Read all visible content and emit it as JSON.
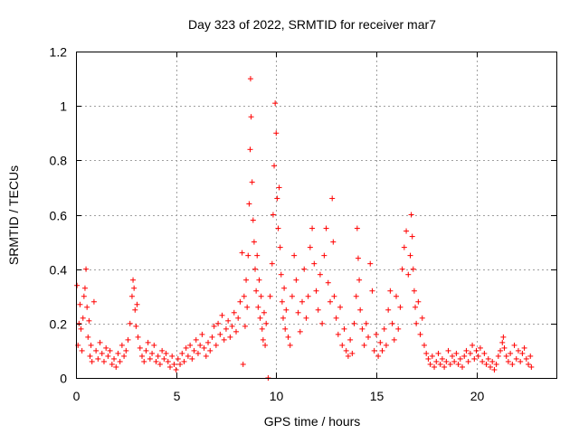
{
  "chart_data": {
    "type": "scatter",
    "title": "Day 323 of 2022, SRMTID for receiver mar7",
    "xlabel": "GPS time / hours",
    "ylabel": "SRMTID / TECUs",
    "xlim": [
      0,
      24
    ],
    "ylim": [
      0,
      1.2
    ],
    "x_ticks": [
      0,
      5,
      10,
      15,
      20
    ],
    "y_ticks": [
      0,
      0.2,
      0.4,
      0.6,
      0.8,
      1,
      1.2
    ],
    "x_tick_labels": [
      "0",
      "5",
      "10",
      "15",
      "20"
    ],
    "y_tick_labels": [
      "0",
      "0.2",
      "0.4",
      "0.6",
      "0.8",
      "1",
      "1.2"
    ],
    "marker": "+",
    "marker_color": "#ff0000",
    "grid": true,
    "series": [
      {
        "name": "SRMTID",
        "points": [
          [
            0.05,
            0.34
          ],
          [
            0.1,
            0.12
          ],
          [
            0.15,
            0.2
          ],
          [
            0.2,
            0.27
          ],
          [
            0.25,
            0.18
          ],
          [
            0.3,
            0.1
          ],
          [
            0.35,
            0.22
          ],
          [
            0.4,
            0.3
          ],
          [
            0.45,
            0.33
          ],
          [
            0.5,
            0.4
          ],
          [
            0.55,
            0.26
          ],
          [
            0.6,
            0.15
          ],
          [
            0.65,
            0.21
          ],
          [
            0.7,
            0.08
          ],
          [
            0.75,
            0.12
          ],
          [
            0.8,
            0.06
          ],
          [
            0.9,
            0.28
          ],
          [
            1.0,
            0.1
          ],
          [
            1.1,
            0.07
          ],
          [
            1.2,
            0.13
          ],
          [
            1.3,
            0.09
          ],
          [
            1.4,
            0.06
          ],
          [
            1.5,
            0.11
          ],
          [
            1.6,
            0.08
          ],
          [
            1.7,
            0.1
          ],
          [
            1.8,
            0.05
          ],
          [
            1.9,
            0.07
          ],
          [
            2.0,
            0.04
          ],
          [
            2.1,
            0.09
          ],
          [
            2.2,
            0.06
          ],
          [
            2.3,
            0.12
          ],
          [
            2.4,
            0.08
          ],
          [
            2.5,
            0.1
          ],
          [
            2.6,
            0.14
          ],
          [
            2.7,
            0.2
          ],
          [
            2.8,
            0.3
          ],
          [
            2.85,
            0.36
          ],
          [
            2.9,
            0.33
          ],
          [
            2.95,
            0.25
          ],
          [
            3.0,
            0.19
          ],
          [
            3.05,
            0.27
          ],
          [
            3.1,
            0.15
          ],
          [
            3.2,
            0.11
          ],
          [
            3.3,
            0.08
          ],
          [
            3.4,
            0.06
          ],
          [
            3.5,
            0.1
          ],
          [
            3.6,
            0.13
          ],
          [
            3.7,
            0.07
          ],
          [
            3.8,
            0.09
          ],
          [
            3.9,
            0.12
          ],
          [
            4.0,
            0.06
          ],
          [
            4.1,
            0.08
          ],
          [
            4.2,
            0.05
          ],
          [
            4.3,
            0.1
          ],
          [
            4.4,
            0.07
          ],
          [
            4.5,
            0.09
          ],
          [
            4.6,
            0.06
          ],
          [
            4.7,
            0.04
          ],
          [
            4.8,
            0.08
          ],
          [
            4.9,
            0.05
          ],
          [
            5.0,
            0.03
          ],
          [
            5.1,
            0.07
          ],
          [
            5.2,
            0.05
          ],
          [
            5.3,
            0.09
          ],
          [
            5.4,
            0.06
          ],
          [
            5.5,
            0.11
          ],
          [
            5.6,
            0.08
          ],
          [
            5.7,
            0.12
          ],
          [
            5.8,
            0.07
          ],
          [
            5.9,
            0.1
          ],
          [
            6.0,
            0.14
          ],
          [
            6.1,
            0.09
          ],
          [
            6.2,
            0.12
          ],
          [
            6.3,
            0.16
          ],
          [
            6.4,
            0.11
          ],
          [
            6.5,
            0.08
          ],
          [
            6.6,
            0.13
          ],
          [
            6.7,
            0.1
          ],
          [
            6.8,
            0.15
          ],
          [
            6.9,
            0.19
          ],
          [
            7.0,
            0.12
          ],
          [
            7.1,
            0.2
          ],
          [
            7.2,
            0.16
          ],
          [
            7.3,
            0.23
          ],
          [
            7.4,
            0.14
          ],
          [
            7.5,
            0.18
          ],
          [
            7.6,
            0.21
          ],
          [
            7.7,
            0.15
          ],
          [
            7.8,
            0.19
          ],
          [
            7.9,
            0.24
          ],
          [
            8.0,
            0.17
          ],
          [
            8.1,
            0.22
          ],
          [
            8.2,
            0.28
          ],
          [
            8.3,
            0.46
          ],
          [
            8.35,
            0.05
          ],
          [
            8.4,
            0.3
          ],
          [
            8.45,
            0.19
          ],
          [
            8.5,
            0.36
          ],
          [
            8.55,
            0.26
          ],
          [
            8.6,
            0.45
          ],
          [
            8.65,
            0.64
          ],
          [
            8.7,
            0.84
          ],
          [
            8.72,
            1.1
          ],
          [
            8.75,
            0.96
          ],
          [
            8.8,
            0.72
          ],
          [
            8.85,
            0.58
          ],
          [
            8.9,
            0.5
          ],
          [
            8.95,
            0.4
          ],
          [
            9.0,
            0.32
          ],
          [
            9.05,
            0.45
          ],
          [
            9.1,
            0.26
          ],
          [
            9.15,
            0.36
          ],
          [
            9.2,
            0.22
          ],
          [
            9.25,
            0.3
          ],
          [
            9.3,
            0.18
          ],
          [
            9.35,
            0.14
          ],
          [
            9.4,
            0.24
          ],
          [
            9.45,
            0.12
          ],
          [
            9.5,
            0.2
          ],
          [
            9.6,
            0.0
          ],
          [
            9.7,
            0.3
          ],
          [
            9.8,
            0.42
          ],
          [
            9.85,
            0.6
          ],
          [
            9.9,
            0.78
          ],
          [
            9.95,
            1.01
          ],
          [
            10.0,
            0.9
          ],
          [
            10.05,
            0.66
          ],
          [
            10.1,
            0.55
          ],
          [
            10.15,
            0.7
          ],
          [
            10.2,
            0.48
          ],
          [
            10.25,
            0.38
          ],
          [
            10.3,
            0.28
          ],
          [
            10.35,
            0.22
          ],
          [
            10.4,
            0.33
          ],
          [
            10.45,
            0.18
          ],
          [
            10.5,
            0.25
          ],
          [
            10.6,
            0.15
          ],
          [
            10.7,
            0.12
          ],
          [
            10.8,
            0.3
          ],
          [
            10.9,
            0.45
          ],
          [
            11.0,
            0.36
          ],
          [
            11.1,
            0.24
          ],
          [
            11.2,
            0.17
          ],
          [
            11.3,
            0.28
          ],
          [
            11.4,
            0.4
          ],
          [
            11.5,
            0.22
          ],
          [
            11.6,
            0.3
          ],
          [
            11.7,
            0.48
          ],
          [
            11.8,
            0.55
          ],
          [
            11.9,
            0.42
          ],
          [
            12.0,
            0.32
          ],
          [
            12.1,
            0.25
          ],
          [
            12.2,
            0.38
          ],
          [
            12.3,
            0.2
          ],
          [
            12.4,
            0.45
          ],
          [
            12.5,
            0.55
          ],
          [
            12.6,
            0.35
          ],
          [
            12.7,
            0.28
          ],
          [
            12.8,
            0.66
          ],
          [
            12.85,
            0.5
          ],
          [
            12.9,
            0.3
          ],
          [
            13.0,
            0.22
          ],
          [
            13.1,
            0.16
          ],
          [
            13.2,
            0.26
          ],
          [
            13.3,
            0.12
          ],
          [
            13.4,
            0.18
          ],
          [
            13.5,
            0.1
          ],
          [
            13.6,
            0.08
          ],
          [
            13.7,
            0.14
          ],
          [
            13.8,
            0.09
          ],
          [
            13.9,
            0.2
          ],
          [
            14.0,
            0.3
          ],
          [
            14.05,
            0.55
          ],
          [
            14.1,
            0.44
          ],
          [
            14.15,
            0.36
          ],
          [
            14.2,
            0.25
          ],
          [
            14.3,
            0.18
          ],
          [
            14.4,
            0.12
          ],
          [
            14.5,
            0.2
          ],
          [
            14.6,
            0.15
          ],
          [
            14.7,
            0.42
          ],
          [
            14.8,
            0.32
          ],
          [
            14.9,
            0.1
          ],
          [
            15.0,
            0.16
          ],
          [
            15.1,
            0.08
          ],
          [
            15.2,
            0.13
          ],
          [
            15.3,
            0.1
          ],
          [
            15.4,
            0.18
          ],
          [
            15.5,
            0.12
          ],
          [
            15.6,
            0.25
          ],
          [
            15.7,
            0.32
          ],
          [
            15.8,
            0.2
          ],
          [
            15.9,
            0.14
          ],
          [
            16.0,
            0.3
          ],
          [
            16.1,
            0.18
          ],
          [
            16.2,
            0.26
          ],
          [
            16.3,
            0.4
          ],
          [
            16.4,
            0.48
          ],
          [
            16.5,
            0.54
          ],
          [
            16.6,
            0.38
          ],
          [
            16.7,
            0.45
          ],
          [
            16.75,
            0.6
          ],
          [
            16.8,
            0.52
          ],
          [
            16.85,
            0.4
          ],
          [
            16.9,
            0.32
          ],
          [
            16.95,
            0.26
          ],
          [
            17.0,
            0.2
          ],
          [
            17.1,
            0.28
          ],
          [
            17.2,
            0.16
          ],
          [
            17.3,
            0.22
          ],
          [
            17.4,
            0.12
          ],
          [
            17.5,
            0.09
          ],
          [
            17.6,
            0.07
          ],
          [
            17.7,
            0.05
          ],
          [
            17.8,
            0.08
          ],
          [
            17.9,
            0.04
          ],
          [
            18.0,
            0.06
          ],
          [
            18.1,
            0.09
          ],
          [
            18.2,
            0.05
          ],
          [
            18.3,
            0.07
          ],
          [
            18.4,
            0.04
          ],
          [
            18.5,
            0.06
          ],
          [
            18.6,
            0.1
          ],
          [
            18.7,
            0.05
          ],
          [
            18.8,
            0.08
          ],
          [
            18.9,
            0.06
          ],
          [
            19.0,
            0.09
          ],
          [
            19.1,
            0.05
          ],
          [
            19.2,
            0.07
          ],
          [
            19.3,
            0.04
          ],
          [
            19.4,
            0.08
          ],
          [
            19.5,
            0.1
          ],
          [
            19.6,
            0.06
          ],
          [
            19.7,
            0.09
          ],
          [
            19.8,
            0.12
          ],
          [
            19.9,
            0.07
          ],
          [
            20.0,
            0.1
          ],
          [
            20.1,
            0.08
          ],
          [
            20.2,
            0.11
          ],
          [
            20.3,
            0.06
          ],
          [
            20.4,
            0.09
          ],
          [
            20.5,
            0.05
          ],
          [
            20.6,
            0.07
          ],
          [
            20.7,
            0.04
          ],
          [
            20.8,
            0.06
          ],
          [
            20.9,
            0.03
          ],
          [
            21.0,
            0.05
          ],
          [
            21.1,
            0.08
          ],
          [
            21.2,
            0.1
          ],
          [
            21.3,
            0.13
          ],
          [
            21.35,
            0.15
          ],
          [
            21.4,
            0.11
          ],
          [
            21.5,
            0.08
          ],
          [
            21.6,
            0.06
          ],
          [
            21.7,
            0.09
          ],
          [
            21.8,
            0.05
          ],
          [
            21.9,
            0.12
          ],
          [
            22.0,
            0.07
          ],
          [
            22.1,
            0.1
          ],
          [
            22.2,
            0.06
          ],
          [
            22.3,
            0.09
          ],
          [
            22.4,
            0.11
          ],
          [
            22.5,
            0.07
          ],
          [
            22.6,
            0.05
          ],
          [
            22.7,
            0.08
          ],
          [
            22.75,
            0.04
          ]
        ]
      }
    ]
  }
}
